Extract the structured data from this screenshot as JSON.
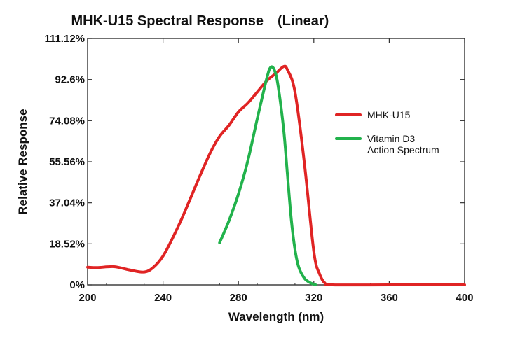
{
  "chart_data": {
    "type": "line",
    "title": "MHK-U15 Spectral Response",
    "subtitle": "(Linear)",
    "xlabel": "Wavelength (nm)",
    "ylabel": "Relative Response",
    "xlim": [
      200,
      400
    ],
    "ylim": [
      0,
      111.12
    ],
    "x_ticks": [
      200,
      240,
      280,
      320,
      360,
      400
    ],
    "x_tick_labels": [
      "200",
      "240",
      "280",
      "320",
      "360",
      "400"
    ],
    "y_ticks": [
      0,
      18.52,
      37.04,
      55.56,
      74.08,
      92.6,
      111.12
    ],
    "y_tick_labels": [
      "0%",
      "18.52%",
      "37.04%",
      "55.56%",
      "74.08%",
      "92.6%",
      "111.12%"
    ],
    "grid": false,
    "legend_position": "right",
    "series": [
      {
        "name": "MHK-U15",
        "color": "#e02424",
        "points": [
          [
            200,
            8
          ],
          [
            205,
            7.8
          ],
          [
            214,
            8.2
          ],
          [
            222,
            6.8
          ],
          [
            230,
            5.8
          ],
          [
            235,
            8
          ],
          [
            240,
            13
          ],
          [
            245,
            21
          ],
          [
            250,
            30
          ],
          [
            255,
            40
          ],
          [
            260,
            50
          ],
          [
            265,
            59.5
          ],
          [
            270,
            67
          ],
          [
            275,
            72
          ],
          [
            280,
            78
          ],
          [
            285,
            82
          ],
          [
            290,
            87
          ],
          [
            295,
            92
          ],
          [
            300,
            95.5
          ],
          [
            304,
            98.5
          ],
          [
            306,
            97
          ],
          [
            310,
            87
          ],
          [
            315,
            55
          ],
          [
            320,
            15
          ],
          [
            323,
            5
          ],
          [
            326,
            0.7
          ],
          [
            330,
            0
          ],
          [
            360,
            0
          ],
          [
            400,
            0
          ]
        ]
      },
      {
        "name": "Vitamin D3\nAction Spectrum",
        "name_lines": [
          "Vitamin D3",
          "Action Spectrum"
        ],
        "color": "#22b24c",
        "points": [
          [
            270,
            19
          ],
          [
            275,
            29
          ],
          [
            280,
            41
          ],
          [
            285,
            56
          ],
          [
            290,
            75
          ],
          [
            295,
            93
          ],
          [
            297,
            98
          ],
          [
            299,
            97
          ],
          [
            301,
            90
          ],
          [
            304,
            70
          ],
          [
            306,
            50
          ],
          [
            308,
            30
          ],
          [
            310,
            16
          ],
          [
            312,
            8
          ],
          [
            315,
            3
          ],
          [
            318,
            1
          ],
          [
            321,
            0
          ]
        ]
      }
    ]
  }
}
